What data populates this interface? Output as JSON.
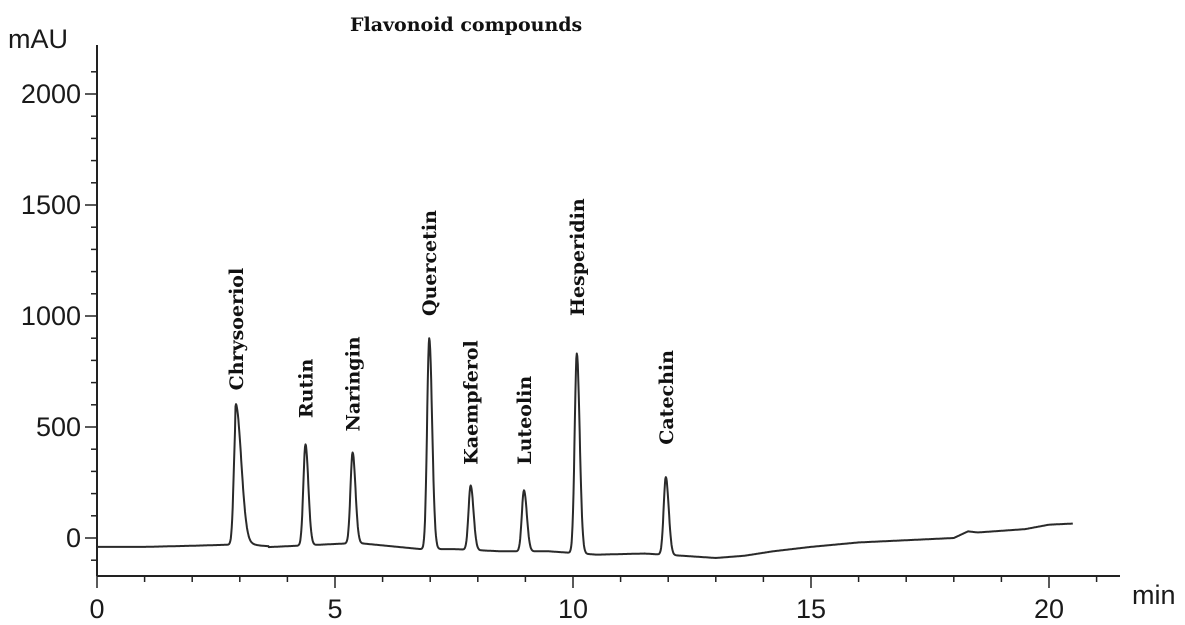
{
  "chart_data": {
    "type": "line",
    "title": "Flavonoid compounds",
    "ylabel": "mAU",
    "xlabel": "min",
    "xlim": [
      0,
      21.5
    ],
    "ylim": [
      -170,
      2200
    ],
    "x_ticks": [
      0,
      5,
      10,
      15,
      20
    ],
    "y_ticks": [
      0,
      500,
      1000,
      1500,
      2000
    ],
    "grid": false,
    "baseline": [
      [
        0,
        -40
      ],
      [
        1,
        -40
      ],
      [
        2,
        -35
      ],
      [
        2.8,
        -30
      ],
      [
        3.2,
        -45
      ],
      [
        4.2,
        -35
      ],
      [
        5.2,
        -25
      ],
      [
        5.6,
        -25
      ],
      [
        6.8,
        -50
      ],
      [
        7.5,
        -50
      ],
      [
        8.5,
        -60
      ],
      [
        9.5,
        -60
      ],
      [
        10.5,
        -75
      ],
      [
        11.5,
        -70
      ],
      [
        12.3,
        -80
      ],
      [
        13,
        -90
      ],
      [
        13.6,
        -80
      ],
      [
        14.2,
        -60
      ],
      [
        15,
        -40
      ],
      [
        16,
        -20
      ],
      [
        17,
        -10
      ],
      [
        18,
        0
      ],
      [
        18.3,
        30
      ],
      [
        18.5,
        25
      ],
      [
        19.5,
        40
      ],
      [
        20,
        60
      ],
      [
        20.5,
        65
      ]
    ],
    "peaks": [
      {
        "name": "Chrysoeriol",
        "rt": 2.92,
        "height": 570,
        "label_y": 665
      },
      {
        "name": "Rutin",
        "rt": 4.38,
        "height": 455,
        "label_y": 540
      },
      {
        "name": "Naringin",
        "rt": 5.37,
        "height": 410,
        "label_y": 480
      },
      {
        "name": "Quercetin",
        "rt": 6.98,
        "height": 950,
        "label_y": 1000
      },
      {
        "name": "Kaempferol",
        "rt": 7.85,
        "height": 290,
        "label_y": 330
      },
      {
        "name": "Luteolin",
        "rt": 8.97,
        "height": 275,
        "label_y": 330
      },
      {
        "name": "Hesperidin",
        "rt": 10.08,
        "height": 900,
        "label_y": 1000
      },
      {
        "name": "Catechin",
        "rt": 11.95,
        "height": 350,
        "label_y": 420
      }
    ]
  }
}
